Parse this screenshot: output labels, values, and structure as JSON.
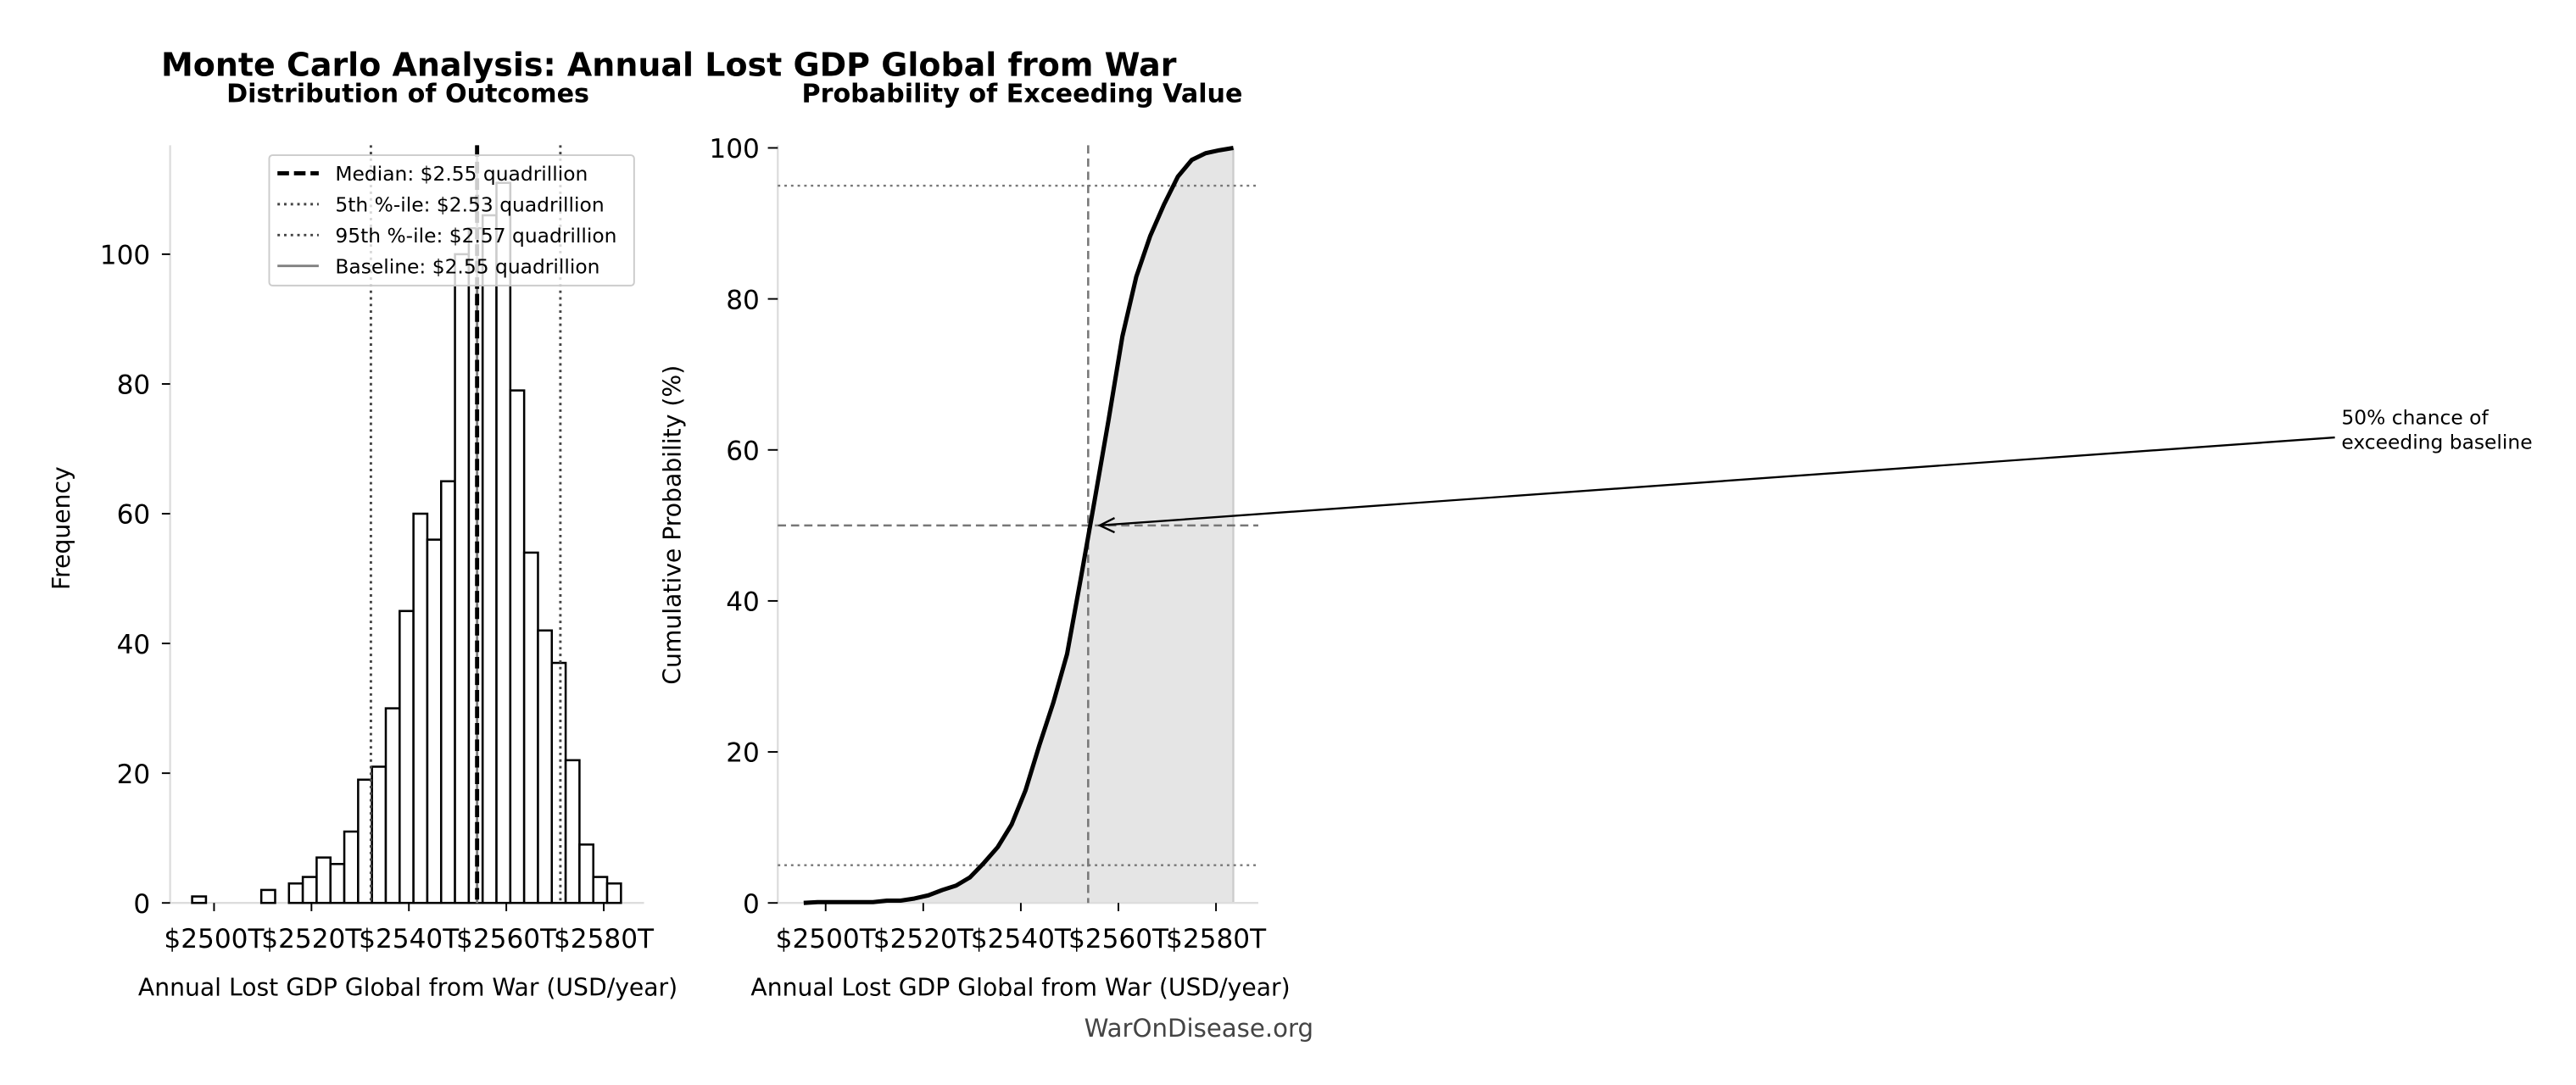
{
  "title": "Monte Carlo Analysis: Annual Lost GDP Global from War",
  "watermark": "WarOnDisease.org",
  "chart_data": [
    {
      "type": "bar",
      "subtype": "histogram",
      "title": "Distribution of Outcomes",
      "xlabel": "Annual Lost GDP Global from War (USD/year)",
      "ylabel": "Frequency",
      "x_unit": "trillion USD",
      "bin_start": 2495.5,
      "bin_width": 2.84,
      "values": [
        1,
        0,
        0,
        0,
        0,
        2,
        0,
        3,
        4,
        7,
        6,
        11,
        19,
        21,
        30,
        45,
        60,
        56,
        65,
        100,
        104,
        106,
        111,
        79,
        54,
        42,
        37,
        22,
        9,
        4,
        3
      ],
      "xlim": [
        2491,
        2588
      ],
      "ylim": [
        0,
        117
      ],
      "xticks": [
        2500,
        2520,
        2540,
        2560,
        2580
      ],
      "xtick_labels": [
        "$2500T",
        "$2520T",
        "$2540T",
        "$2560T",
        "$2580T"
      ],
      "yticks": [
        0,
        20,
        40,
        60,
        80,
        100
      ],
      "ytick_labels": [
        "0",
        "20",
        "40",
        "60",
        "80",
        "100"
      ],
      "reference_lines": {
        "median": 2554.0,
        "p5": 2532.2,
        "p95": 2571.1,
        "baseline": 2554.0
      },
      "legend_position": "upper-right",
      "legend": [
        {
          "label": "Median: $2.55 quadrillion",
          "style": "dashed",
          "color": "#000000"
        },
        {
          "label": "5th %-ile: $2.53 quadrillion",
          "style": "dotted",
          "color": "#444444"
        },
        {
          "label": "95th %-ile: $2.57 quadrillion",
          "style": "dotted",
          "color": "#444444"
        },
        {
          "label": "Baseline: $2.55 quadrillion",
          "style": "solid",
          "color": "#808080"
        }
      ]
    },
    {
      "type": "line",
      "subtype": "cumulative distribution",
      "title": "Probability of Exceeding Value",
      "xlabel": "Annual Lost GDP Global from War (USD/year)",
      "ylabel": "Cumulative Probability (%)",
      "xlim": [
        2491,
        2588
      ],
      "ylim": [
        0,
        100
      ],
      "xticks": [
        2500,
        2520,
        2540,
        2560,
        2580
      ],
      "xtick_labels": [
        "$2500T",
        "$2520T",
        "$2540T",
        "$2560T",
        "$2580T"
      ],
      "yticks": [
        0,
        20,
        40,
        60,
        80,
        100
      ],
      "ytick_labels": [
        "0",
        "20",
        "40",
        "60",
        "80",
        "100"
      ],
      "fill_color": "#e5e5e5",
      "baseline_x": 2553.8,
      "hlines": {
        "p50": 50,
        "p5": 5,
        "p95": 95
      },
      "annotation": {
        "line1": "50% chance of",
        "line2": "exceeding baseline",
        "x": 2553.8,
        "y": 50
      }
    }
  ]
}
